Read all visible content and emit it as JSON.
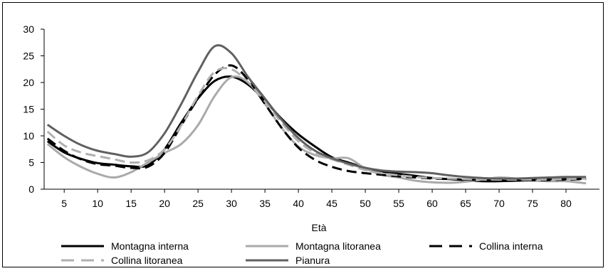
{
  "chart_data": {
    "type": "line",
    "title": "",
    "xlabel": "Età",
    "ylabel": "",
    "xlim": [
      2,
      85
    ],
    "ylim": [
      0,
      30
    ],
    "yticks": [
      0,
      5,
      10,
      15,
      20,
      25,
      30
    ],
    "xticks": [
      5,
      10,
      15,
      20,
      25,
      30,
      35,
      40,
      45,
      50,
      55,
      60,
      65,
      70,
      75,
      80
    ],
    "grid": false,
    "legend": "bottom",
    "x": [
      2.5,
      5,
      7.5,
      10,
      12.5,
      15,
      17.5,
      20,
      22.5,
      25,
      27.5,
      30,
      32.5,
      35,
      37.5,
      40,
      42.5,
      45,
      47.5,
      50,
      52.5,
      55,
      57.5,
      60,
      62.5,
      65,
      67.5,
      70,
      72.5,
      75,
      77.5,
      80,
      83
    ],
    "series": [
      {
        "name": "Montagna interna",
        "color": "#000000",
        "dash": "solid",
        "width": 3,
        "values": [
          9.0,
          6.9,
          5.7,
          4.9,
          4.6,
          4.3,
          4.5,
          7.5,
          12.5,
          17.0,
          20.3,
          21.1,
          19.6,
          16.6,
          13.2,
          10.3,
          8.0,
          6.0,
          5.0,
          4.0,
          3.3,
          2.9,
          2.5,
          2.1,
          1.9,
          1.7,
          1.5,
          1.5,
          1.6,
          1.7,
          1.8,
          1.9,
          2.0
        ]
      },
      {
        "name": "Montagna litoranea",
        "color": "#aaaaaa",
        "dash": "solid",
        "width": 3,
        "values": [
          8.5,
          6.0,
          4.2,
          2.9,
          2.2,
          3.2,
          5.0,
          6.8,
          8.5,
          12.0,
          17.5,
          21.0,
          20.0,
          16.0,
          11.5,
          8.0,
          6.4,
          5.8,
          5.8,
          3.9,
          2.7,
          2.2,
          1.6,
          1.3,
          1.2,
          1.4,
          1.8,
          2.2,
          2.0,
          1.6,
          1.5,
          1.5,
          1.1
        ]
      },
      {
        "name": "Collina interna",
        "color": "#000000",
        "dash": "long",
        "width": 3,
        "values": [
          9.5,
          7.2,
          5.6,
          4.7,
          4.4,
          4.0,
          4.2,
          6.8,
          12.0,
          17.0,
          21.5,
          23.2,
          20.5,
          16.0,
          11.5,
          7.8,
          5.5,
          4.2,
          3.4,
          3.0,
          2.7,
          2.4,
          2.2,
          2.0,
          1.9,
          1.8,
          1.7,
          1.6,
          1.6,
          1.7,
          1.7,
          1.8,
          1.9
        ]
      },
      {
        "name": "Collina litoranea",
        "color": "#b0b0b0",
        "dash": "long",
        "width": 3,
        "values": [
          10.8,
          8.2,
          6.9,
          6.2,
          5.6,
          5.0,
          5.4,
          7.5,
          12.0,
          17.5,
          22.0,
          22.5,
          20.0,
          16.5,
          12.5,
          9.0,
          6.8,
          5.6,
          4.6,
          3.6,
          3.0,
          2.6,
          2.3,
          2.1,
          2.0,
          1.9,
          1.8,
          1.8,
          1.8,
          1.8,
          1.8,
          1.9,
          2.0
        ]
      },
      {
        "name": "Pianura",
        "color": "#606060",
        "dash": "solid",
        "width": 3,
        "values": [
          12.1,
          10.0,
          8.3,
          7.2,
          6.6,
          6.1,
          6.9,
          10.5,
          16.0,
          22.0,
          26.8,
          25.5,
          21.0,
          17.0,
          13.0,
          9.6,
          7.2,
          5.8,
          4.8,
          4.0,
          3.5,
          3.3,
          3.2,
          3.0,
          2.6,
          2.3,
          2.1,
          2.0,
          2.0,
          2.1,
          2.2,
          2.3,
          2.3
        ]
      }
    ]
  }
}
